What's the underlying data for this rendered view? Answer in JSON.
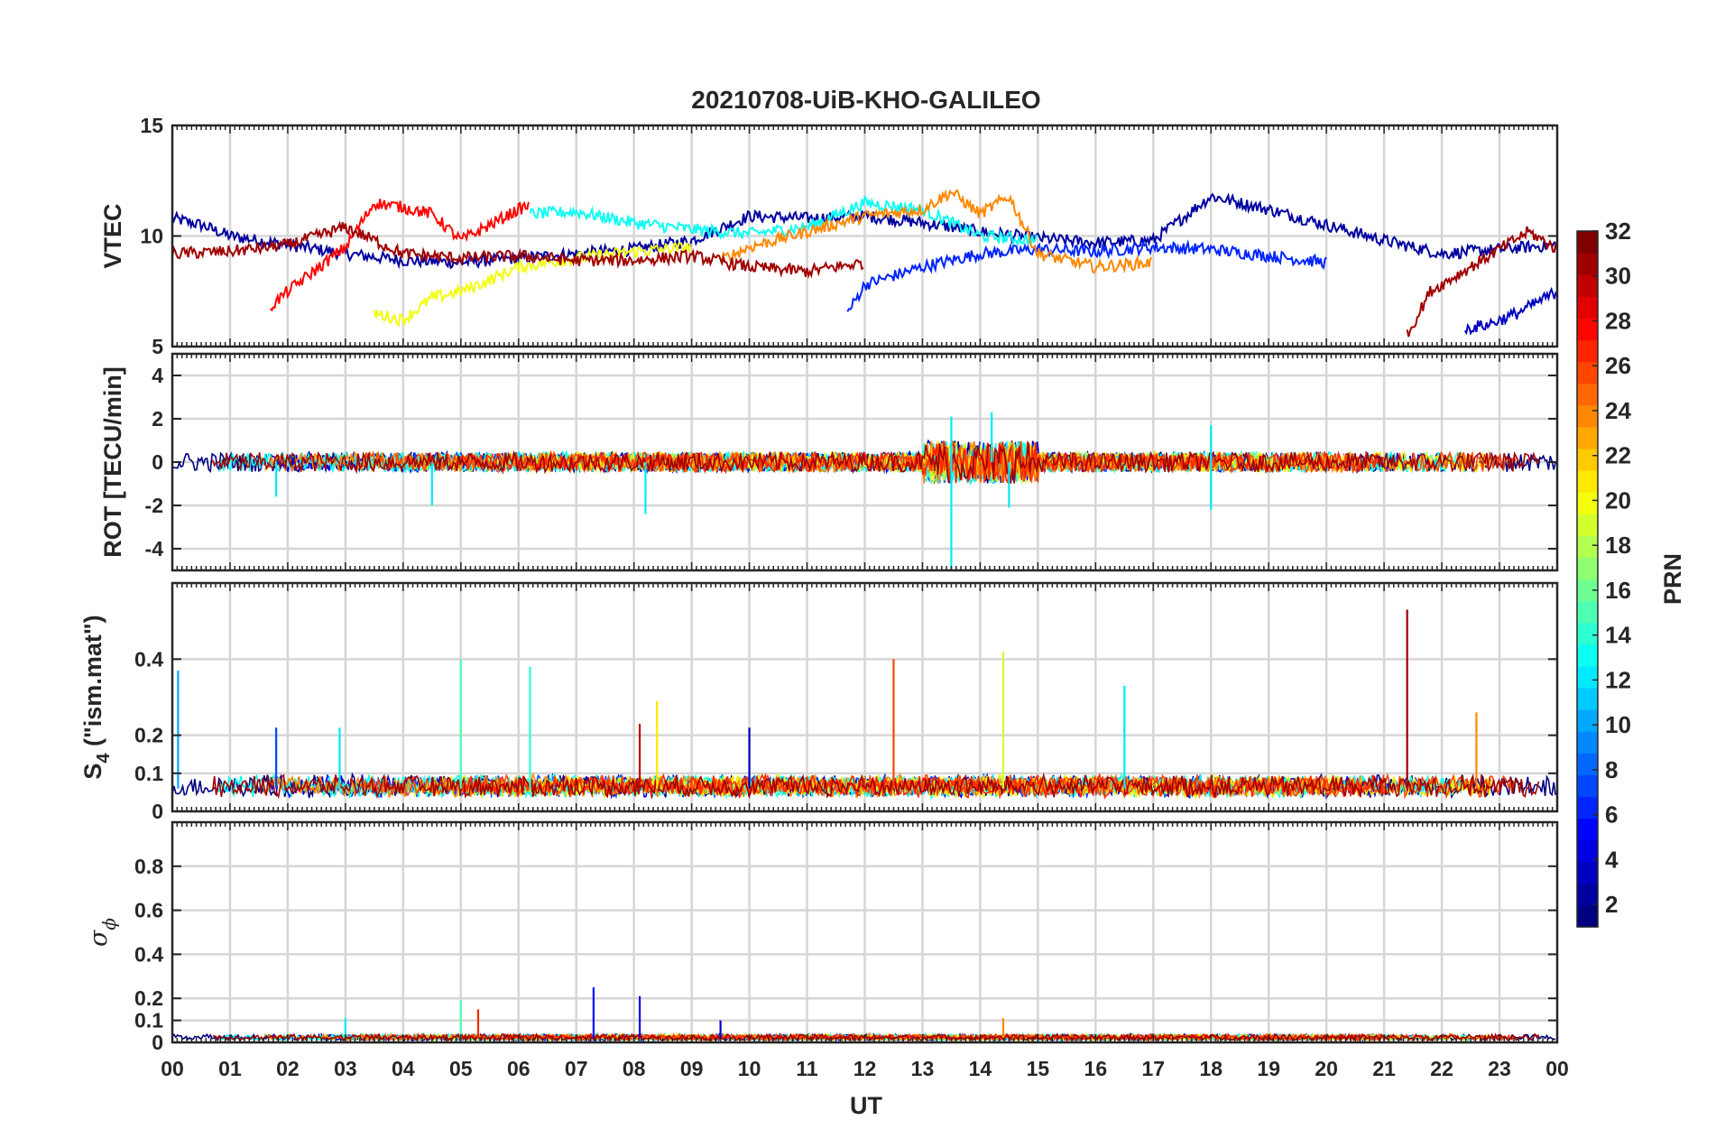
{
  "chart_data": {
    "type": "line",
    "title": "20210708-UiB-KHO-GALILEO",
    "xlabel": "UT",
    "x_tick_labels": [
      "00",
      "01",
      "02",
      "03",
      "04",
      "05",
      "06",
      "07",
      "08",
      "09",
      "10",
      "11",
      "12",
      "13",
      "14",
      "15",
      "16",
      "17",
      "18",
      "19",
      "20",
      "21",
      "22",
      "23",
      "00"
    ],
    "xlim": [
      0,
      24
    ],
    "panels": [
      {
        "id": "vtec",
        "ylabel": "VTEC",
        "ylim": [
          5,
          15
        ],
        "y_ticks": [
          5,
          10,
          15
        ],
        "y_tick_labels": [
          "5",
          "10",
          "15"
        ],
        "grid": true,
        "summary_series": [
          {
            "prn": 2,
            "x": [
              0,
              0.5,
              1,
              2,
              3,
              4,
              5,
              6,
              7,
              8,
              9,
              10,
              11,
              12,
              13,
              14,
              15,
              16,
              17,
              18,
              19,
              20,
              21,
              22,
              23,
              24
            ],
            "values": [
              10.8,
              10.5,
              10.0,
              9.6,
              9.2,
              8.9,
              8.8,
              9.0,
              9.2,
              9.4,
              9.8,
              10.9,
              10.8,
              10.9,
              10.6,
              10.2,
              9.9,
              9.7,
              9.8,
              11.8,
              11.2,
              10.5,
              9.8,
              9.2,
              9.4,
              9.6
            ]
          },
          {
            "prn": 6,
            "x": [
              11.7,
              12,
              13,
              14,
              15,
              16,
              17,
              18,
              19,
              20
            ],
            "values": [
              6.5,
              7.8,
              8.6,
              9.2,
              9.4,
              9.3,
              9.5,
              9.4,
              9.1,
              8.8
            ]
          },
          {
            "prn": 13,
            "x": [
              6.2,
              7,
              8,
              9,
              10,
              11,
              12,
              13,
              14,
              15
            ],
            "values": [
              11.0,
              11.1,
              10.6,
              10.3,
              10.1,
              10.4,
              11.5,
              11.2,
              10.0,
              9.8
            ]
          },
          {
            "prn": 20,
            "x": [
              3.5,
              4,
              4.5,
              5,
              5.5,
              6,
              7,
              8,
              9
            ],
            "values": [
              6.5,
              6.2,
              7.2,
              7.5,
              8.0,
              8.6,
              9.0,
              9.3,
              9.5
            ]
          },
          {
            "prn": 24,
            "x": [
              9.5,
              10,
              11,
              12,
              13,
              13.5,
              14,
              14.5,
              15,
              16,
              17
            ],
            "values": [
              8.9,
              9.5,
              10.2,
              10.9,
              11.2,
              12.0,
              11.0,
              11.8,
              9.2,
              8.6,
              8.8
            ]
          },
          {
            "prn": 28,
            "x": [
              1.7,
              2,
              3,
              3.5,
              4,
              4.5,
              5,
              5.5,
              6,
              6.2
            ],
            "values": [
              6.8,
              7.5,
              9.5,
              11.5,
              11.3,
              11.0,
              9.8,
              10.5,
              11.2,
              11.4
            ]
          },
          {
            "prn": 31,
            "x": [
              0,
              1,
              2,
              3,
              4,
              5,
              6,
              7,
              8,
              9,
              10,
              11,
              12
            ],
            "values": [
              9.2,
              9.3,
              9.6,
              10.4,
              9.2,
              9.0,
              9.1,
              8.9,
              8.9,
              9.1,
              8.6,
              8.4,
              8.8
            ]
          },
          {
            "prn": 31,
            "x": [
              21.4,
              21.8,
              22.5,
              23,
              23.5,
              24
            ],
            "values": [
              5.5,
              7.5,
              8.6,
              9.4,
              10.2,
              9.4
            ]
          },
          {
            "prn": 3,
            "x": [
              22.4,
              22.8,
              23.3,
              23.8,
              24
            ],
            "values": [
              5.8,
              6.0,
              6.5,
              7.2,
              7.5
            ]
          }
        ]
      },
      {
        "id": "rot",
        "ylabel": "ROT [TECU/min]",
        "ylim": [
          -5,
          5
        ],
        "y_ticks": [
          -4,
          -2,
          0,
          2,
          4
        ],
        "y_tick_labels": [
          "-4",
          "-2",
          "0",
          "2",
          "4"
        ],
        "grid": true,
        "notable_spikes": [
          {
            "x": 1.8,
            "value": -1.6
          },
          {
            "x": 4.5,
            "value": -2.0
          },
          {
            "x": 8.2,
            "value": -2.4
          },
          {
            "x": 13.5,
            "value": -5.0
          },
          {
            "x": 13.5,
            "value": 2.1
          },
          {
            "x": 14.2,
            "value": 2.3
          },
          {
            "x": 14.5,
            "value": -2.1
          },
          {
            "x": 18.0,
            "value": -2.2
          },
          {
            "x": 18.0,
            "value": 1.7
          }
        ]
      },
      {
        "id": "s4",
        "ylabel": "S4 (\"ism.mat\")",
        "ylim": [
          0,
          0.6
        ],
        "y_ticks": [
          0,
          0.1,
          0.2,
          0.4
        ],
        "y_tick_labels": [
          "0",
          "0.1",
          "0.2",
          "0.4"
        ],
        "grid": true,
        "baseline": 0.06,
        "notable_spikes": [
          {
            "x": 0.1,
            "value": 0.37,
            "prn": 10
          },
          {
            "x": 1.8,
            "value": 0.22,
            "prn": 7
          },
          {
            "x": 2.9,
            "value": 0.22,
            "prn": 12
          },
          {
            "x": 5.0,
            "value": 0.4,
            "prn": 15
          },
          {
            "x": 6.2,
            "value": 0.38,
            "prn": 14
          },
          {
            "x": 8.1,
            "value": 0.23,
            "prn": 30
          },
          {
            "x": 8.4,
            "value": 0.29,
            "prn": 21
          },
          {
            "x": 10.0,
            "value": 0.22,
            "prn": 3
          },
          {
            "x": 12.5,
            "value": 0.4,
            "prn": 26
          },
          {
            "x": 14.4,
            "value": 0.42,
            "prn": 19
          },
          {
            "x": 16.5,
            "value": 0.33,
            "prn": 12
          },
          {
            "x": 21.4,
            "value": 0.53,
            "prn": 31
          },
          {
            "x": 22.6,
            "value": 0.26,
            "prn": 24
          }
        ]
      },
      {
        "id": "sigma_phi",
        "ylabel_symbol": "σ",
        "ylabel_subscript": "ϕ",
        "ylim": [
          0,
          1
        ],
        "y_ticks": [
          0,
          0.1,
          0.2,
          0.4,
          0.6,
          0.8
        ],
        "y_tick_labels": [
          "0",
          "0.1",
          "0.2",
          "0.4",
          "0.6",
          "0.8"
        ],
        "grid": true,
        "baseline": 0.02,
        "notable_spikes": [
          {
            "x": 3.0,
            "value": 0.11,
            "prn": 12
          },
          {
            "x": 5.0,
            "value": 0.19,
            "prn": 15
          },
          {
            "x": 5.3,
            "value": 0.15,
            "prn": 27
          },
          {
            "x": 7.3,
            "value": 0.25,
            "prn": 5
          },
          {
            "x": 8.1,
            "value": 0.21,
            "prn": 4
          },
          {
            "x": 9.5,
            "value": 0.1,
            "prn": 3
          },
          {
            "x": 14.4,
            "value": 0.11,
            "prn": 24
          }
        ]
      }
    ],
    "colorbar": {
      "label": "PRN",
      "range": [
        1,
        32
      ],
      "ticks": [
        2,
        4,
        6,
        8,
        10,
        12,
        14,
        16,
        18,
        20,
        22,
        24,
        26,
        28,
        30,
        32
      ],
      "tick_labels": [
        "2",
        "4",
        "6",
        "8",
        "10",
        "12",
        "14",
        "16",
        "18",
        "20",
        "22",
        "24",
        "26",
        "28",
        "30",
        "32"
      ],
      "colormap": "jet"
    }
  }
}
